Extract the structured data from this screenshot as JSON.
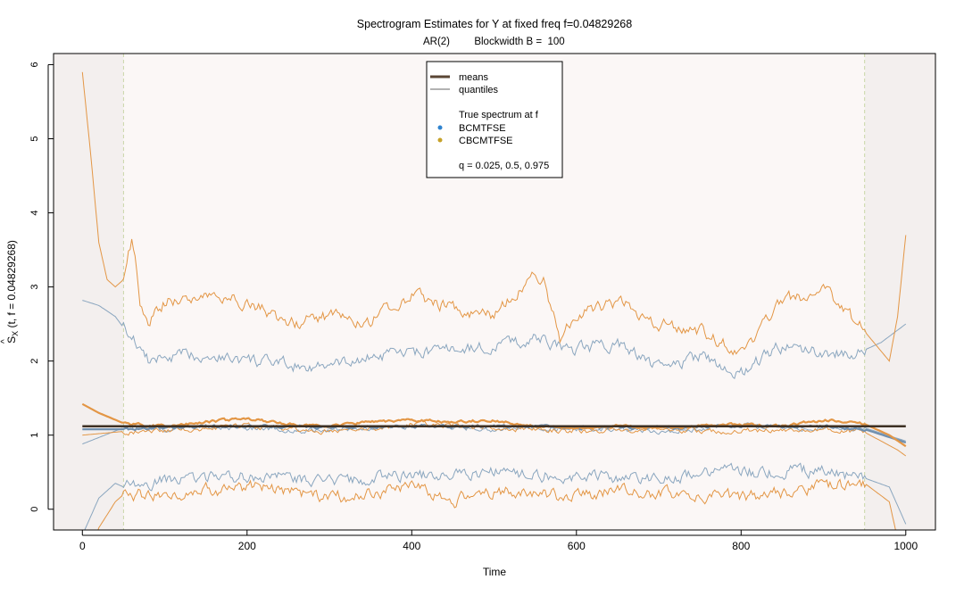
{
  "chart_data": {
    "type": "line",
    "title": "Spectrogram Estimates for Y at fixed freq f=0.04829268",
    "subtitle_left": "AR(2)",
    "subtitle_right": "Blockwidth B =  100",
    "xlabel": "Time",
    "ylabel": "Ŝ_X (t, f = 0.04829268)",
    "ylabel_main": "S",
    "ylabel_hat": "^",
    "ylabel_sub": "X",
    "ylabel_rest": " (t, f = 0.04829268)",
    "xlim": [
      -35,
      1036
    ],
    "ylim": [
      -0.28,
      6.15
    ],
    "xticks": [
      "0",
      "200",
      "400",
      "600",
      "800",
      "1000"
    ],
    "yticks": [
      "0",
      "1",
      "2",
      "3",
      "4",
      "5",
      "6"
    ],
    "boundary_lines": [
      50,
      950
    ],
    "true_spectrum": 1.12,
    "legend": {
      "placement": "top-center",
      "means": "means",
      "quantiles": "quantiles",
      "true_spectrum": "True spectrum at f",
      "bcmtfse": "BCMTFSE",
      "cbcmtfse": "CBCMTFSE",
      "q": "q = 0.025, 0.5, 0.975"
    },
    "series": [
      {
        "name": "BCMTFSE",
        "quantile": 0.975,
        "color": "#8aa6bf",
        "x": [
          0,
          20,
          40,
          50,
          55,
          60,
          70,
          80,
          100,
          150,
          200,
          250,
          300,
          350,
          400,
          450,
          500,
          550,
          600,
          650,
          700,
          750,
          800,
          850,
          900,
          950,
          970,
          1000
        ],
        "y": [
          2.82,
          2.75,
          2.6,
          2.45,
          2.4,
          2.3,
          2.2,
          2.0,
          2.05,
          2.1,
          2.0,
          1.95,
          1.92,
          2.05,
          2.1,
          2.15,
          2.2,
          2.3,
          2.15,
          2.25,
          1.9,
          2.05,
          1.85,
          2.2,
          2.1,
          2.15,
          2.25,
          2.5
        ]
      },
      {
        "name": "CBCMTFSE",
        "quantile": 0.975,
        "color": "#e39645",
        "x": [
          0,
          10,
          20,
          30,
          40,
          50,
          55,
          60,
          65,
          70,
          80,
          100,
          150,
          200,
          250,
          300,
          350,
          400,
          450,
          500,
          550,
          560,
          580,
          600,
          650,
          700,
          750,
          800,
          850,
          900,
          950,
          980,
          990,
          1000
        ],
        "y": [
          5.9,
          4.8,
          3.6,
          3.1,
          3.0,
          3.1,
          3.4,
          3.6,
          3.3,
          2.7,
          2.5,
          2.8,
          2.9,
          2.8,
          2.5,
          2.6,
          2.55,
          2.9,
          2.7,
          2.6,
          3.2,
          3.1,
          2.3,
          2.6,
          2.8,
          2.5,
          2.4,
          2.1,
          2.8,
          2.95,
          2.4,
          2.0,
          2.6,
          3.7
        ]
      },
      {
        "name": "BCMTFSE",
        "quantile": 0.5,
        "color": "#8aa6bf",
        "x": [
          0,
          50,
          100,
          200,
          300,
          400,
          500,
          600,
          700,
          800,
          900,
          950,
          1000
        ],
        "y": [
          0.88,
          1.1,
          1.08,
          1.1,
          1.05,
          1.12,
          1.08,
          1.1,
          1.06,
          1.12,
          1.1,
          1.1,
          0.92
        ]
      },
      {
        "name": "CBCMTFSE",
        "quantile": 0.5,
        "color": "#e39645",
        "x": [
          0,
          50,
          100,
          200,
          300,
          400,
          500,
          600,
          700,
          800,
          900,
          950,
          990,
          1000
        ],
        "y": [
          1.0,
          1.05,
          1.06,
          1.12,
          1.05,
          1.15,
          1.1,
          1.05,
          1.08,
          1.05,
          1.08,
          1.04,
          0.8,
          0.72
        ]
      },
      {
        "name": "CBCMTFSE",
        "quantile": 0.025,
        "color": "#e39645",
        "x": [
          0,
          20,
          40,
          50,
          100,
          200,
          300,
          400,
          450,
          500,
          550,
          600,
          650,
          700,
          800,
          900,
          950,
          980,
          1000
        ],
        "y": [
          -0.9,
          -0.25,
          0.1,
          0.2,
          0.2,
          0.3,
          0.15,
          0.3,
          0.1,
          0.25,
          0.2,
          0.15,
          0.25,
          0.2,
          0.15,
          0.3,
          0.35,
          0.1,
          -0.9
        ]
      },
      {
        "name": "BCMTFSE",
        "quantile": 0.025,
        "color": "#8aa6bf",
        "x": [
          0,
          20,
          40,
          50,
          100,
          200,
          300,
          400,
          500,
          600,
          700,
          800,
          900,
          950,
          980,
          1000
        ],
        "y": [
          -0.35,
          0.15,
          0.35,
          0.3,
          0.4,
          0.45,
          0.38,
          0.45,
          0.5,
          0.45,
          0.42,
          0.5,
          0.52,
          0.42,
          0.3,
          -0.2
        ]
      },
      {
        "name": "BCMTFSE",
        "stat": "mean",
        "color": "#6f8fae",
        "x": [
          0,
          50,
          100,
          200,
          300,
          400,
          500,
          600,
          700,
          800,
          900,
          950,
          1000
        ],
        "y": [
          1.08,
          1.08,
          1.1,
          1.12,
          1.1,
          1.12,
          1.12,
          1.1,
          1.1,
          1.12,
          1.12,
          1.08,
          0.9
        ]
      },
      {
        "name": "CBCMTFSE",
        "stat": "mean",
        "color": "#e39645",
        "x": [
          0,
          20,
          50,
          100,
          150,
          200,
          250,
          300,
          350,
          400,
          450,
          500,
          550,
          600,
          650,
          700,
          750,
          800,
          850,
          900,
          950,
          980,
          1000
        ],
        "y": [
          1.42,
          1.3,
          1.16,
          1.12,
          1.18,
          1.22,
          1.15,
          1.12,
          1.18,
          1.2,
          1.18,
          1.2,
          1.12,
          1.1,
          1.12,
          1.1,
          1.12,
          1.15,
          1.12,
          1.2,
          1.15,
          1.0,
          0.85
        ]
      }
    ]
  }
}
